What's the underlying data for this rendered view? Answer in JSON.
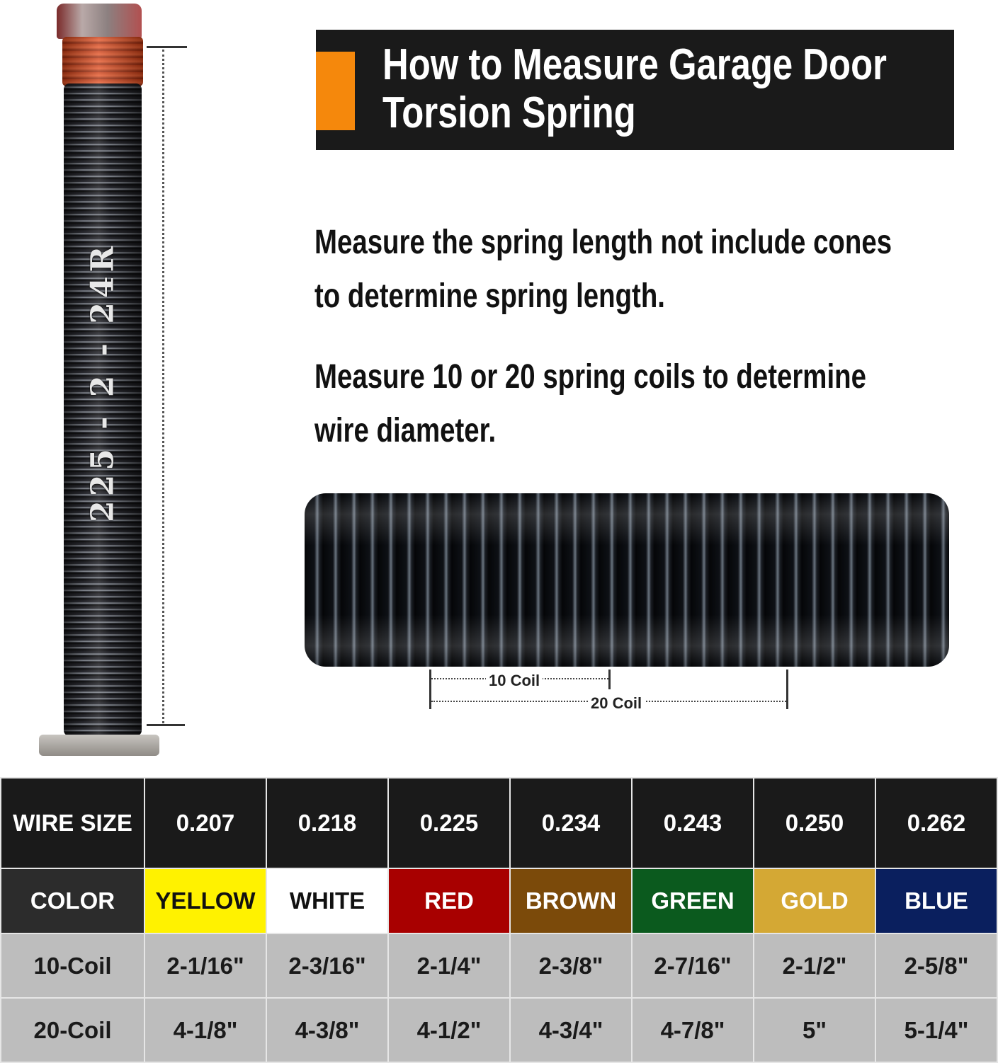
{
  "spring_label": "225 - 2 - 24R",
  "title": {
    "line1": "How to Measure Garage Door",
    "line2": "Torsion Spring",
    "accent_color": "#f5880c"
  },
  "instructions": [
    {
      "line1": "Measure the spring length not include cones",
      "line2": "to determine spring length."
    },
    {
      "line1": "Measure 10 or 20 spring coils to determine",
      "line2": "wire diameter."
    }
  ],
  "dimensions": {
    "ten": "10 Coil",
    "twenty": "20 Coil"
  },
  "table": {
    "row_labels": [
      "WIRE SIZE",
      "COLOR",
      "10-Coil",
      "20-Coil"
    ],
    "columns": [
      {
        "wire": "0.207",
        "color": "YELLOW",
        "bg": "#fff200",
        "fg": "#111111",
        "c10": "2-1/16\"",
        "c20": "4-1/8\""
      },
      {
        "wire": "0.218",
        "color": "WHITE",
        "bg": "#ffffff",
        "fg": "#111111",
        "c10": "2-3/16\"",
        "c20": "4-3/8\""
      },
      {
        "wire": "0.225",
        "color": "RED",
        "bg": "#a80000",
        "fg": "#ffffff",
        "c10": "2-1/4\"",
        "c20": "4-1/2\""
      },
      {
        "wire": "0.234",
        "color": "BROWN",
        "bg": "#7b4a0a",
        "fg": "#ffffff",
        "c10": "2-3/8\"",
        "c20": "4-3/4\""
      },
      {
        "wire": "0.243",
        "color": "GREEN",
        "bg": "#0b5a1e",
        "fg": "#ffffff",
        "c10": "2-7/16\"",
        "c20": "4-7/8\""
      },
      {
        "wire": "0.250",
        "color": "GOLD",
        "bg": "#d4a834",
        "fg": "#ffffff",
        "c10": "2-1/2\"",
        "c20": "5\""
      },
      {
        "wire": "0.262",
        "color": "BLUE",
        "bg": "#0a1f5e",
        "fg": "#ffffff",
        "c10": "2-5/8\"",
        "c20": "5-1/4\""
      }
    ]
  }
}
